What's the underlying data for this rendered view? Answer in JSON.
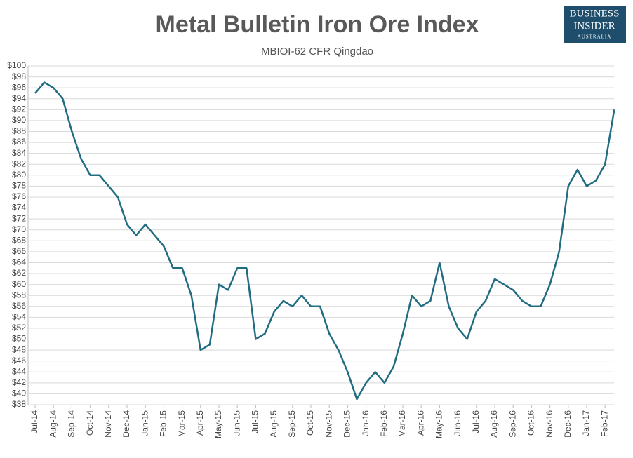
{
  "chart_data": {
    "type": "line",
    "title": "Metal Bulletin Iron Ore Index",
    "subtitle": "MBIOI-62 CFR Qingdao",
    "categories": [
      "Jul-14",
      null,
      "Aug-14",
      null,
      "Sep-14",
      null,
      "Oct-14",
      null,
      "Nov-14",
      null,
      "Dec-14",
      null,
      "Jan-15",
      null,
      "Feb-15",
      null,
      "Mar-15",
      null,
      "Apr-15",
      null,
      "May-15",
      null,
      "Jun-15",
      null,
      "Jul-15",
      null,
      "Aug-15",
      null,
      "Sep-15",
      null,
      "Oct-15",
      null,
      "Nov-15",
      null,
      "Dec-15",
      null,
      "Jan-16",
      null,
      "Feb-16",
      null,
      "Mar-16",
      null,
      "Apr-16",
      null,
      "May-16",
      null,
      "Jun-16",
      null,
      "Jul-16",
      null,
      "Aug-16",
      null,
      "Sep-16",
      null,
      "Oct-16",
      null,
      "Nov-16",
      null,
      "Dec-16",
      null,
      "Jan-17",
      null,
      "Feb-17",
      null
    ],
    "values": [
      95,
      97,
      96,
      94,
      88,
      83,
      80,
      80,
      78,
      76,
      71,
      69,
      71,
      69,
      67,
      63,
      63,
      58,
      48,
      49,
      60,
      59,
      63,
      63,
      50,
      51,
      55,
      57,
      56,
      58,
      56,
      56,
      51,
      48,
      44,
      39,
      42,
      44,
      42,
      45,
      51,
      58,
      56,
      57,
      64,
      56,
      52,
      50,
      55,
      57,
      61,
      60,
      59,
      57,
      56,
      56,
      60,
      66,
      78,
      81,
      78,
      79,
      82,
      92
    ],
    "color": "#226c82",
    "ylim": [
      38,
      100
    ],
    "yticks": [
      {
        "value": 38,
        "label": "$38"
      },
      {
        "value": 40,
        "label": "$40"
      },
      {
        "value": 42,
        "label": "$42"
      },
      {
        "value": 44,
        "label": "$44"
      },
      {
        "value": 46,
        "label": "$46"
      },
      {
        "value": 48,
        "label": "$48"
      },
      {
        "value": 50,
        "label": "$50"
      },
      {
        "value": 52,
        "label": "$52"
      },
      {
        "value": 54,
        "label": "$54"
      },
      {
        "value": 56,
        "label": "$56"
      },
      {
        "value": 58,
        "label": "$58"
      },
      {
        "value": 60,
        "label": "$60"
      },
      {
        "value": 62,
        "label": "$62"
      },
      {
        "value": 64,
        "label": "$64"
      },
      {
        "value": 66,
        "label": "$66"
      },
      {
        "value": 68,
        "label": "$68"
      },
      {
        "value": 70,
        "label": "$70"
      },
      {
        "value": 72,
        "label": "$72"
      },
      {
        "value": 74,
        "label": "$74"
      },
      {
        "value": 76,
        "label": "$76"
      },
      {
        "value": 78,
        "label": "$78"
      },
      {
        "value": 80,
        "label": "$80"
      },
      {
        "value": 82,
        "label": "$82"
      },
      {
        "value": 84,
        "label": "$84"
      },
      {
        "value": 86,
        "label": "$86"
      },
      {
        "value": 88,
        "label": "$88"
      },
      {
        "value": 90,
        "label": "$90"
      },
      {
        "value": 92,
        "label": "$92"
      },
      {
        "value": 94,
        "label": "$94"
      },
      {
        "value": 96,
        "label": "$96"
      },
      {
        "value": 98,
        "label": "$98"
      },
      {
        "value": 100,
        "label": "$100"
      }
    ],
    "grid": true
  },
  "logo": [
    "BUSINESS",
    "INSIDER",
    "AUSTRALIA"
  ]
}
